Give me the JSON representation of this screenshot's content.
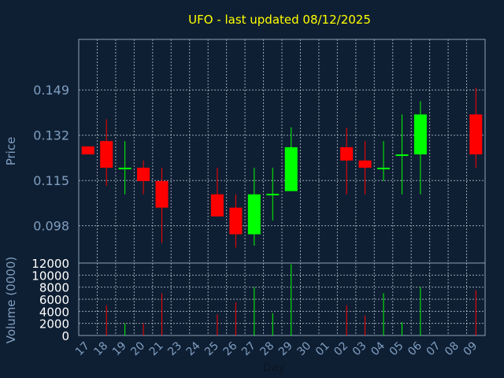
{
  "chart_data": {
    "type": "candlestick",
    "title": "UFO - last updated 08/12/2025",
    "price_axis": {
      "label": "Price",
      "ylim": [
        0.084,
        0.168
      ],
      "ticks": [
        "0.098",
        "0.115",
        "0.132",
        "0.149"
      ],
      "tick_values": [
        0.098,
        0.115,
        0.132,
        0.149
      ]
    },
    "volume_axis": {
      "label": "Volume (0000)",
      "ylim": [
        0,
        12000
      ],
      "ticks": [
        "0",
        "2000",
        "4000",
        "6000",
        "8000",
        "10000",
        "12000"
      ],
      "tick_values": [
        0,
        2000,
        4000,
        6000,
        8000,
        10000,
        12000
      ]
    },
    "xlabel": "Day",
    "x_ticks": [
      "17",
      "18",
      "19",
      "20",
      "21",
      "23",
      "24",
      "25",
      "26",
      "27",
      "28",
      "29",
      "30",
      "01",
      "02",
      "03",
      "04",
      "05",
      "06",
      "07",
      "08",
      "09"
    ],
    "grid": true,
    "candles": [
      {
        "slot": 0,
        "open": 0.1278,
        "close": 0.1248,
        "high": 0.1278,
        "low": 0.1248
      },
      {
        "slot": 1,
        "open": 0.1298,
        "close": 0.1198,
        "high": 0.138,
        "low": 0.113
      },
      {
        "slot": 2,
        "open": 0.1195,
        "close": 0.1198,
        "high": 0.1298,
        "low": 0.1098
      },
      {
        "slot": 3,
        "open": 0.1198,
        "close": 0.1148,
        "high": 0.1225,
        "low": 0.1098
      },
      {
        "slot": 4,
        "open": 0.1148,
        "close": 0.1048,
        "high": 0.1198,
        "low": 0.0915
      },
      {
        "slot": 7,
        "open": 0.1098,
        "close": 0.1015,
        "high": 0.1198,
        "low": 0.1015
      },
      {
        "slot": 8,
        "open": 0.1048,
        "close": 0.0948,
        "high": 0.1098,
        "low": 0.0898
      },
      {
        "slot": 9,
        "open": 0.0948,
        "close": 0.1098,
        "high": 0.1198,
        "low": 0.0905
      },
      {
        "slot": 10,
        "open": 0.1095,
        "close": 0.11,
        "high": 0.1198,
        "low": 0.1
      },
      {
        "slot": 11,
        "open": 0.111,
        "close": 0.1275,
        "high": 0.135,
        "low": 0.111
      },
      {
        "slot": 14,
        "open": 0.1275,
        "close": 0.1225,
        "high": 0.1348,
        "low": 0.1098
      },
      {
        "slot": 15,
        "open": 0.1225,
        "close": 0.1198,
        "high": 0.1298,
        "low": 0.1098
      },
      {
        "slot": 16,
        "open": 0.1195,
        "close": 0.1198,
        "high": 0.1298,
        "low": 0.1148
      },
      {
        "slot": 17,
        "open": 0.1245,
        "close": 0.1248,
        "high": 0.1398,
        "low": 0.1098
      },
      {
        "slot": 18,
        "open": 0.1248,
        "close": 0.1398,
        "high": 0.1448,
        "low": 0.1098
      },
      {
        "slot": 21,
        "open": 0.1398,
        "close": 0.1248,
        "high": 0.1498,
        "low": 0.1198
      }
    ],
    "volume": [
      {
        "slot": 1,
        "value": 5000,
        "color": "#ff0000"
      },
      {
        "slot": 2,
        "value": 2000,
        "color": "#00ff00"
      },
      {
        "slot": 3,
        "value": 2000,
        "color": "#ff0000"
      },
      {
        "slot": 4,
        "value": 7000,
        "color": "#ff0000"
      },
      {
        "slot": 7,
        "value": 3500,
        "color": "#ff0000"
      },
      {
        "slot": 8,
        "value": 5500,
        "color": "#ff0000"
      },
      {
        "slot": 9,
        "value": 8000,
        "color": "#00ff00"
      },
      {
        "slot": 10,
        "value": 3700,
        "color": "#00ff00"
      },
      {
        "slot": 11,
        "value": 11800,
        "color": "#00ff00"
      },
      {
        "slot": 14,
        "value": 5000,
        "color": "#ff0000"
      },
      {
        "slot": 15,
        "value": 3300,
        "color": "#ff0000"
      },
      {
        "slot": 16,
        "value": 7000,
        "color": "#00ff00"
      },
      {
        "slot": 17,
        "value": 2200,
        "color": "#00ff00"
      },
      {
        "slot": 18,
        "value": 8000,
        "color": "#00ff00"
      },
      {
        "slot": 21,
        "value": 7500,
        "color": "#ff0000"
      }
    ],
    "colors": {
      "background": "#0f1f33",
      "title": "#ffff00",
      "axis_text": "#7f9ec0",
      "up": "#00ff00",
      "down": "#ff0000",
      "grid": "#c8d0dc"
    }
  }
}
